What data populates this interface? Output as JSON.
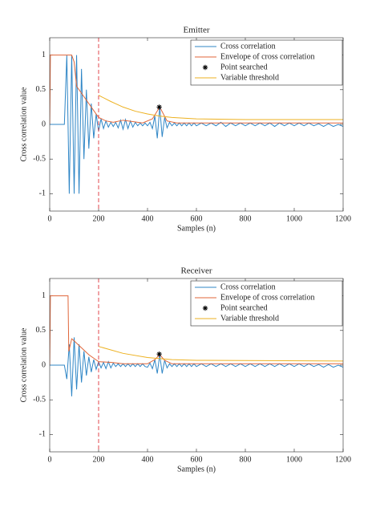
{
  "chart_data": [
    {
      "type": "line",
      "title": "Emitter",
      "x_label": "Samples (n)",
      "y_label": "Cross correlation value",
      "xlim": [
        0,
        1200
      ],
      "xticks": [
        0,
        200,
        400,
        600,
        800,
        1000,
        1200
      ],
      "ylim": [
        -1.25,
        1.25
      ],
      "yticks": [
        -1,
        -0.5,
        0,
        0.5,
        1
      ],
      "vline_x": 200,
      "vline_color": "#e0474c",
      "legend": "upper right",
      "series": [
        {
          "name": "Cross correlation",
          "color": "#2f86c6",
          "x": [
            0,
            60,
            70,
            80,
            90,
            100,
            110,
            120,
            130,
            140,
            150,
            160,
            170,
            180,
            190,
            200,
            210,
            220,
            230,
            240,
            250,
            260,
            270,
            280,
            290,
            300,
            310,
            320,
            330,
            340,
            350,
            360,
            370,
            380,
            390,
            400,
            410,
            420,
            430,
            440,
            450,
            460,
            470,
            480,
            490,
            500,
            510,
            520,
            530,
            540,
            550,
            560,
            570,
            580,
            590,
            600,
            620,
            640,
            660,
            680,
            700,
            720,
            740,
            760,
            780,
            800,
            820,
            840,
            860,
            880,
            900,
            920,
            940,
            960,
            980,
            1000,
            1020,
            1040,
            1060,
            1080,
            1100,
            1120,
            1140,
            1160,
            1180,
            1200
          ],
          "values": [
            0,
            0,
            1,
            -1,
            1,
            -1,
            1,
            -1,
            0.8,
            -0.5,
            0.5,
            -0.35,
            0.3,
            -0.2,
            0.15,
            -0.1,
            0.08,
            -0.06,
            0.05,
            -0.04,
            0.03,
            -0.03,
            0.03,
            -0.05,
            0.06,
            -0.07,
            0.07,
            -0.06,
            0.05,
            -0.04,
            0.03,
            -0.02,
            0.02,
            -0.02,
            0.02,
            -0.02,
            0.03,
            -0.06,
            0.12,
            -0.2,
            0.25,
            -0.18,
            0.1,
            -0.05,
            0.03,
            -0.02,
            0.02,
            -0.02,
            0.02,
            -0.02,
            0.02,
            -0.02,
            0.02,
            -0.02,
            0.02,
            -0.02,
            0.02,
            -0.02,
            0.02,
            -0.02,
            0.03,
            -0.03,
            0.02,
            -0.02,
            0.02,
            -0.02,
            0.02,
            -0.02,
            0.02,
            -0.02,
            0.02,
            -0.03,
            0.02,
            -0.02,
            0.02,
            -0.02,
            0.02,
            -0.02,
            0.02,
            -0.02,
            0.01,
            -0.03,
            0.01,
            -0.03,
            0,
            -0.03
          ]
        },
        {
          "name": "Envelope of cross correlation",
          "color": "#e0663a",
          "x": [
            0,
            3,
            90,
            100,
            110,
            120,
            130,
            150,
            170,
            200,
            230,
            260,
            300,
            340,
            380,
            420,
            450,
            480,
            520,
            700,
            1200
          ],
          "values": [
            0,
            1,
            1,
            0.9,
            0.55,
            0.5,
            0.45,
            0.35,
            0.25,
            0.1,
            0.05,
            0.03,
            0.06,
            0.04,
            0.02,
            0.08,
            0.25,
            0.05,
            0.02,
            0.02,
            0.02
          ]
        },
        {
          "name": "Point searched",
          "color": "#000000",
          "marker": "star",
          "x": [
            448
          ],
          "values": [
            0.25
          ]
        },
        {
          "name": "Variable threshold",
          "color": "#edb120",
          "x": [
            200,
            250,
            300,
            350,
            400,
            450,
            500,
            600,
            800,
            1200
          ],
          "values": [
            0.42,
            0.33,
            0.25,
            0.19,
            0.15,
            0.12,
            0.1,
            0.08,
            0.07,
            0.07
          ]
        }
      ]
    },
    {
      "type": "line",
      "title": "Receiver",
      "x_label": "Samples (n)",
      "y_label": "Cross correlation value",
      "xlim": [
        0,
        1200
      ],
      "xticks": [
        0,
        200,
        400,
        600,
        800,
        1000,
        1200
      ],
      "ylim": [
        -1.25,
        1.25
      ],
      "yticks": [
        -1,
        -0.5,
        0,
        0.5,
        1
      ],
      "vline_x": 200,
      "vline_color": "#e0474c",
      "legend": "upper right",
      "series": [
        {
          "name": "Cross correlation",
          "color": "#2f86c6",
          "x": [
            0,
            60,
            70,
            80,
            90,
            100,
            110,
            120,
            130,
            140,
            150,
            160,
            170,
            180,
            190,
            200,
            210,
            220,
            230,
            240,
            250,
            260,
            270,
            280,
            290,
            300,
            310,
            320,
            330,
            340,
            350,
            360,
            370,
            380,
            390,
            400,
            410,
            420,
            430,
            440,
            450,
            460,
            470,
            480,
            490,
            500,
            510,
            520,
            530,
            540,
            550,
            560,
            570,
            580,
            590,
            600,
            620,
            640,
            660,
            680,
            700,
            720,
            740,
            760,
            780,
            800,
            820,
            840,
            860,
            880,
            900,
            920,
            940,
            960,
            980,
            1000,
            1020,
            1040,
            1060,
            1080,
            1100,
            1120,
            1140,
            1160,
            1180,
            1200
          ],
          "values": [
            0,
            0,
            -0.2,
            0.3,
            -0.45,
            0.4,
            -0.35,
            0.3,
            -0.25,
            0.2,
            -0.15,
            0.12,
            -0.1,
            0.08,
            -0.06,
            0.05,
            -0.04,
            0.04,
            -0.05,
            0.05,
            -0.04,
            0.03,
            -0.02,
            0.02,
            -0.02,
            0.02,
            -0.02,
            0.02,
            -0.02,
            0.02,
            -0.02,
            0.02,
            -0.02,
            0.02,
            -0.02,
            -0.03,
            0.03,
            -0.05,
            0.08,
            -0.12,
            0.15,
            -0.12,
            0.07,
            -0.04,
            0.02,
            -0.02,
            0.02,
            -0.02,
            0.02,
            -0.02,
            0.02,
            -0.02,
            0.02,
            -0.02,
            0.02,
            -0.02,
            0.02,
            -0.02,
            0.02,
            -0.02,
            0.02,
            -0.02,
            0.02,
            -0.02,
            0.02,
            -0.02,
            0.02,
            -0.02,
            0.02,
            -0.02,
            0.02,
            -0.02,
            0.02,
            -0.02,
            0.02,
            -0.02,
            0.02,
            -0.02,
            0.02,
            -0.02,
            0.01,
            -0.03,
            0.01,
            -0.03,
            0,
            -0.03
          ]
        },
        {
          "name": "Envelope of cross correlation",
          "color": "#e0663a",
          "x": [
            0,
            3,
            75,
            78,
            90,
            100,
            130,
            160,
            200,
            250,
            300,
            400,
            430,
            450,
            470,
            500,
            1200
          ],
          "values": [
            0,
            1,
            1,
            0.2,
            0.38,
            0.35,
            0.25,
            0.15,
            0.05,
            0.04,
            0.02,
            0.02,
            0.08,
            0.15,
            0.07,
            0.02,
            0.02
          ]
        },
        {
          "name": "Point searched",
          "color": "#000000",
          "marker": "star",
          "x": [
            448
          ],
          "values": [
            0.16
          ]
        },
        {
          "name": "Variable threshold",
          "color": "#edb120",
          "x": [
            200,
            300,
            400,
            500,
            600,
            1200
          ],
          "values": [
            0.27,
            0.17,
            0.11,
            0.08,
            0.07,
            0.06
          ]
        }
      ]
    }
  ]
}
